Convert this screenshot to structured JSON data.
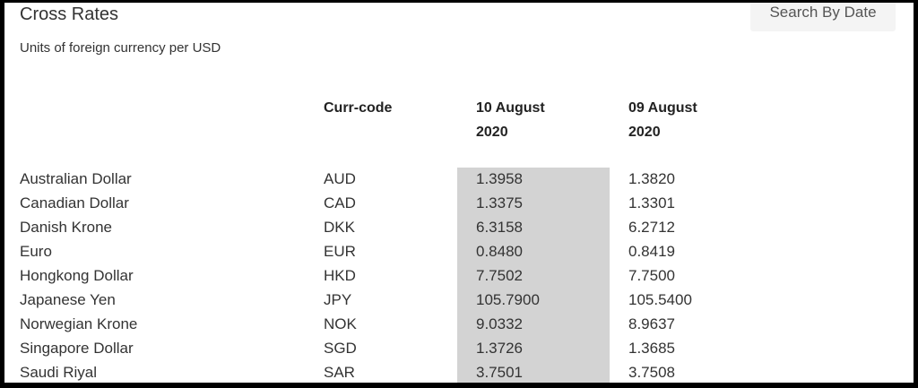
{
  "title": "Cross Rates",
  "search_button": "Search By Date",
  "subtitle": "Units of foreign currency per USD",
  "headers": {
    "code": "Curr-code",
    "date1_line1": "10 August",
    "date1_line2": "2020",
    "date2_line1": "09 August",
    "date2_line2": "2020"
  },
  "rows": [
    {
      "name": "Australian Dollar",
      "code": "AUD",
      "v1": "1.3958",
      "v2": "1.3820"
    },
    {
      "name": "Canadian Dollar",
      "code": "CAD",
      "v1": "1.3375",
      "v2": "1.3301"
    },
    {
      "name": "Danish Krone",
      "code": "DKK",
      "v1": "6.3158",
      "v2": "6.2712"
    },
    {
      "name": "Euro",
      "code": "EUR",
      "v1": "0.8480",
      "v2": "0.8419"
    },
    {
      "name": "Hongkong Dollar",
      "code": "HKD",
      "v1": "7.7502",
      "v2": "7.7500"
    },
    {
      "name": "Japanese Yen",
      "code": "JPY",
      "v1": "105.7900",
      "v2": "105.5400"
    },
    {
      "name": "Norwegian Krone",
      "code": "NOK",
      "v1": "9.0332",
      "v2": "8.9637"
    },
    {
      "name": "Singapore Dollar",
      "code": "SGD",
      "v1": "1.3726",
      "v2": "1.3685"
    },
    {
      "name": "Saudi Riyal",
      "code": "SAR",
      "v1": "3.7501",
      "v2": "3.7508"
    }
  ],
  "colors": {
    "highlight_column": "#d3d3d3",
    "button_bg": "#f4f4f4",
    "frame": "#000000"
  }
}
